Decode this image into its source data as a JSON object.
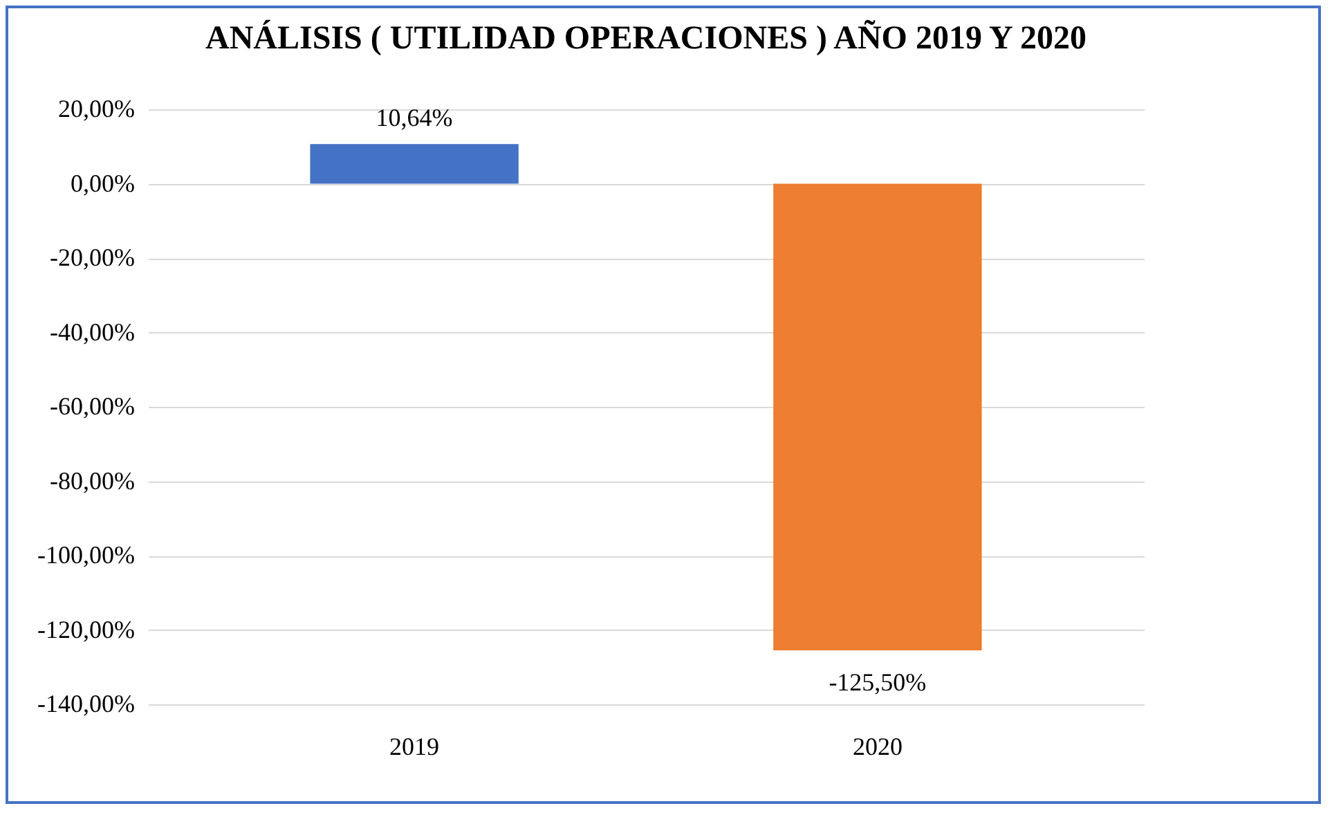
{
  "chart_data": {
    "type": "bar",
    "title": "ANÁLISIS ( UTILIDAD OPERACIONES ) AÑO 2019 Y 2020",
    "categories": [
      "2019",
      "2020"
    ],
    "values": [
      10.64,
      -125.5
    ],
    "colors": [
      "#4472c4",
      "#ed7d31"
    ],
    "value_labels": [
      "10,64%",
      "-125,50%"
    ],
    "ylim": [
      -140,
      20
    ],
    "yticks": [
      {
        "value": 20,
        "label": "20,00%"
      },
      {
        "value": 0,
        "label": "0,00%"
      },
      {
        "value": -20,
        "label": "-20,00%"
      },
      {
        "value": -40,
        "label": "-40,00%"
      },
      {
        "value": -60,
        "label": "-60,00%"
      },
      {
        "value": -80,
        "label": "-80,00%"
      },
      {
        "value": -100,
        "label": "-100,00%"
      },
      {
        "value": -120,
        "label": "-120,00%"
      },
      {
        "value": -140,
        "label": "-140,00%"
      }
    ],
    "grid": "y"
  }
}
